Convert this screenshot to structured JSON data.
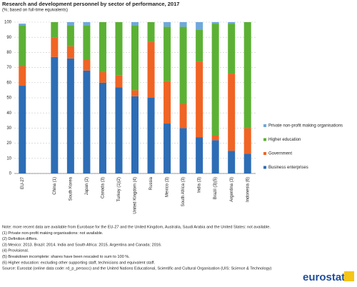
{
  "chart_data": {
    "type": "bar",
    "stacked": true,
    "title": "Research and development personnel by sector of performance, 2017",
    "subtitle": "(%; based on full-time equivalents)",
    "categories": [
      "EU-27",
      null,
      "China (1)",
      "South Korea",
      "Japan (2)",
      "Canada (3)",
      "Turkey (1)(2)",
      "United Kingdom (4)",
      "Russia",
      "Mexico (3)",
      "South Africa (3)",
      "India (3)",
      "Brazil (3)(5)",
      "Argentina (3)",
      "Indonesia (6)"
    ],
    "series": [
      {
        "name": "Business enterprises",
        "color": "#2d6db5",
        "values": [
          58,
          null,
          77,
          76,
          68,
          60,
          57,
          51,
          50,
          33,
          30,
          24,
          22,
          15,
          13
        ]
      },
      {
        "name": "Government",
        "color": "#f06424",
        "values": [
          13,
          null,
          13,
          8,
          7,
          7,
          8,
          4,
          37,
          28,
          16,
          50,
          3,
          51,
          17
        ]
      },
      {
        "name": "Higher education",
        "color": "#5cb135",
        "values": [
          27,
          null,
          10,
          14,
          23,
          33,
          35,
          43,
          13,
          36,
          51,
          21,
          74,
          33,
          70
        ]
      },
      {
        "name": "Private non-profit making organisations",
        "color": "#6fa8dc",
        "values": [
          1,
          null,
          0,
          2,
          2,
          0,
          0,
          2,
          0,
          3,
          3,
          5,
          1,
          1,
          0
        ]
      }
    ],
    "ylim": [
      0,
      100
    ],
    "yticks": [
      0,
      10,
      20,
      30,
      40,
      50,
      60,
      70,
      80,
      90,
      100
    ],
    "grid": true,
    "legend": "right"
  },
  "notes": [
    "Note: more recent data are available from Eurobase for the EU-27 and the United Kingdom, Australia, Saudi Arabia and the United States: not available.",
    "(1) Private non-profit making organisations: not available.",
    "(2) Definition differs.",
    "(3) Mexico: 2013. Brazil: 2014. India and South Africa: 2015. Argentina and Canada: 2016.",
    "(4) Provisional.",
    "(5) Breakdown incomplete: shares have been rescaled to sum to 100 %.",
    "(6) Higher education: excluding other supporting staff, technicians and equivalent staff.",
    "Source:  Eurostat (online data code: rd_p_persocc) and the United Nations Educational, Scientific and Cultural Organisation (UIS: Science & Technology)"
  ],
  "logo": "eurostat"
}
